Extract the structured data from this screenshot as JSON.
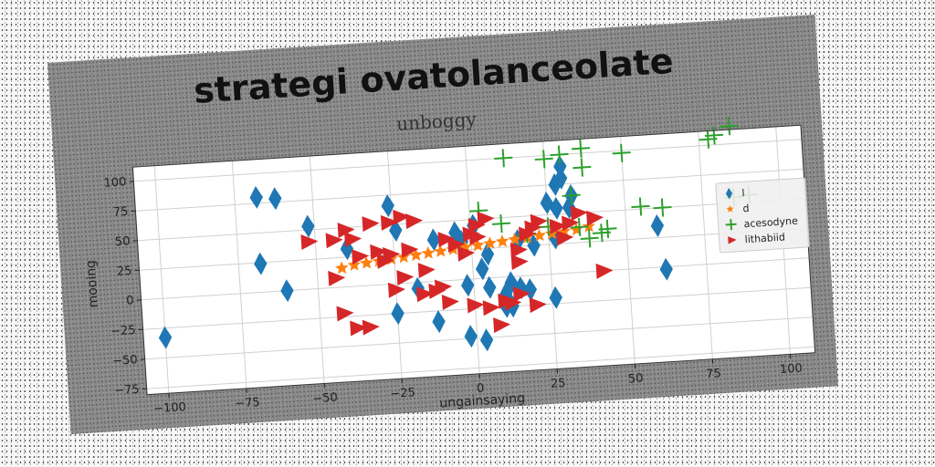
{
  "chart_data": {
    "type": "scatter",
    "title": "strategi ovatolanceolate",
    "subtitle": "unboggy",
    "xlabel": "ungainsaying",
    "ylabel": "mooing",
    "xlim": [
      -107,
      108
    ],
    "ylim": [
      -80,
      112
    ],
    "xticks": [
      -100,
      -75,
      -50,
      -25,
      0,
      25,
      50,
      75,
      100
    ],
    "yticks": [
      -75,
      -50,
      -25,
      0,
      25,
      50,
      75,
      100
    ],
    "grid": true,
    "legend_position": "right",
    "series": [
      {
        "name": "l",
        "marker": "diamond",
        "color": "#1f77b4",
        "points": [
          [
            -100,
            -33
          ],
          [
            -68,
            80
          ],
          [
            -62,
            78
          ],
          [
            -68,
            24
          ],
          [
            -60,
            0
          ],
          [
            -52,
            53
          ],
          [
            -40,
            32
          ],
          [
            -26,
            66
          ],
          [
            -24,
            45
          ],
          [
            -25,
            -25
          ],
          [
            -18,
            -5
          ],
          [
            -12,
            35
          ],
          [
            -12,
            -34
          ],
          [
            -5,
            40
          ],
          [
            -3,
            32
          ],
          [
            -2,
            -5
          ],
          [
            1,
            45
          ],
          [
            -2,
            -48
          ],
          [
            3,
            -52
          ],
          [
            3,
            8
          ],
          [
            5,
            -8
          ],
          [
            5,
            20
          ],
          [
            10,
            -15
          ],
          [
            10,
            -25
          ],
          [
            12,
            -5
          ],
          [
            12,
            -25
          ],
          [
            15,
            -10
          ],
          [
            15,
            30
          ],
          [
            18,
            -12
          ],
          [
            20,
            25
          ],
          [
            25,
            60
          ],
          [
            26,
            -20
          ],
          [
            27,
            30
          ],
          [
            28,
            55
          ],
          [
            28,
            75
          ],
          [
            30,
            80
          ],
          [
            30,
            90
          ],
          [
            32,
            55
          ],
          [
            33,
            65
          ],
          [
            60,
            35
          ],
          [
            62,
            -2
          ]
        ]
      },
      {
        "name": "d",
        "marker": "star",
        "color": "#ff7f0e",
        "points": [
          [
            -42,
            16
          ],
          [
            -38,
            18
          ],
          [
            -34,
            19
          ],
          [
            -30,
            20
          ],
          [
            -26,
            21
          ],
          [
            -22,
            22
          ],
          [
            -18,
            23
          ],
          [
            -14,
            24
          ],
          [
            -10,
            25
          ],
          [
            -6,
            26
          ],
          [
            -2,
            27
          ],
          [
            2,
            28
          ],
          [
            6,
            29
          ],
          [
            10,
            30
          ],
          [
            14,
            31
          ],
          [
            18,
            32
          ],
          [
            22,
            33
          ],
          [
            26,
            34
          ],
          [
            30,
            35
          ],
          [
            34,
            36
          ],
          [
            38,
            38
          ]
        ]
      },
      {
        "name": "acesodyne",
        "marker": "plus",
        "color": "#2ca02c",
        "points": [
          [
            12,
            100
          ],
          [
            25,
            97
          ],
          [
            30,
            100
          ],
          [
            37,
            104
          ],
          [
            37,
            88
          ],
          [
            50,
            98
          ],
          [
            80,
            108
          ],
          [
            85,
            115
          ],
          [
            78,
            105
          ],
          [
            33,
            65
          ],
          [
            3,
            57
          ],
          [
            10,
            45
          ],
          [
            18,
            35
          ],
          [
            25,
            40
          ],
          [
            35,
            38
          ],
          [
            38,
            28
          ],
          [
            42,
            32
          ],
          [
            44,
            35
          ],
          [
            55,
            52
          ],
          [
            62,
            50
          ],
          [
            85,
            55
          ],
          [
            90,
            56
          ]
        ]
      },
      {
        "name": "lithabiid",
        "marker": "triangle-right",
        "color": "#d62728",
        "points": [
          [
            -52,
            40
          ],
          [
            -44,
            40
          ],
          [
            -38,
            40
          ],
          [
            -40,
            48
          ],
          [
            -32,
            52
          ],
          [
            -26,
            52
          ],
          [
            -22,
            56
          ],
          [
            -30,
            28
          ],
          [
            -36,
            25
          ],
          [
            -44,
            8
          ],
          [
            -42,
            -22
          ],
          [
            -38,
            -35
          ],
          [
            -34,
            -35
          ],
          [
            -28,
            20
          ],
          [
            -25,
            -5
          ],
          [
            -22,
            5
          ],
          [
            -18,
            52
          ],
          [
            -16,
            -10
          ],
          [
            -12,
            -8
          ],
          [
            -8,
            -18
          ],
          [
            -8,
            35
          ],
          [
            -5,
            30
          ],
          [
            -2,
            22
          ],
          [
            0,
            38
          ],
          [
            2,
            45
          ],
          [
            2,
            35
          ],
          [
            0,
            -22
          ],
          [
            5,
            -25
          ],
          [
            10,
            -20
          ],
          [
            12,
            -22
          ],
          [
            15,
            12
          ],
          [
            15,
            22
          ],
          [
            15,
            -15
          ],
          [
            18,
            35
          ],
          [
            20,
            40
          ],
          [
            20,
            -25
          ],
          [
            22,
            45
          ],
          [
            28,
            40
          ],
          [
            30,
            30
          ],
          [
            32,
            42
          ],
          [
            35,
            50
          ],
          [
            40,
            45
          ],
          [
            42,
            0
          ],
          [
            5,
            50
          ],
          [
            -26,
            25
          ],
          [
            -20,
            28
          ],
          [
            -15,
            10
          ],
          [
            -10,
            -5
          ],
          [
            8,
            -40
          ]
        ]
      }
    ]
  }
}
